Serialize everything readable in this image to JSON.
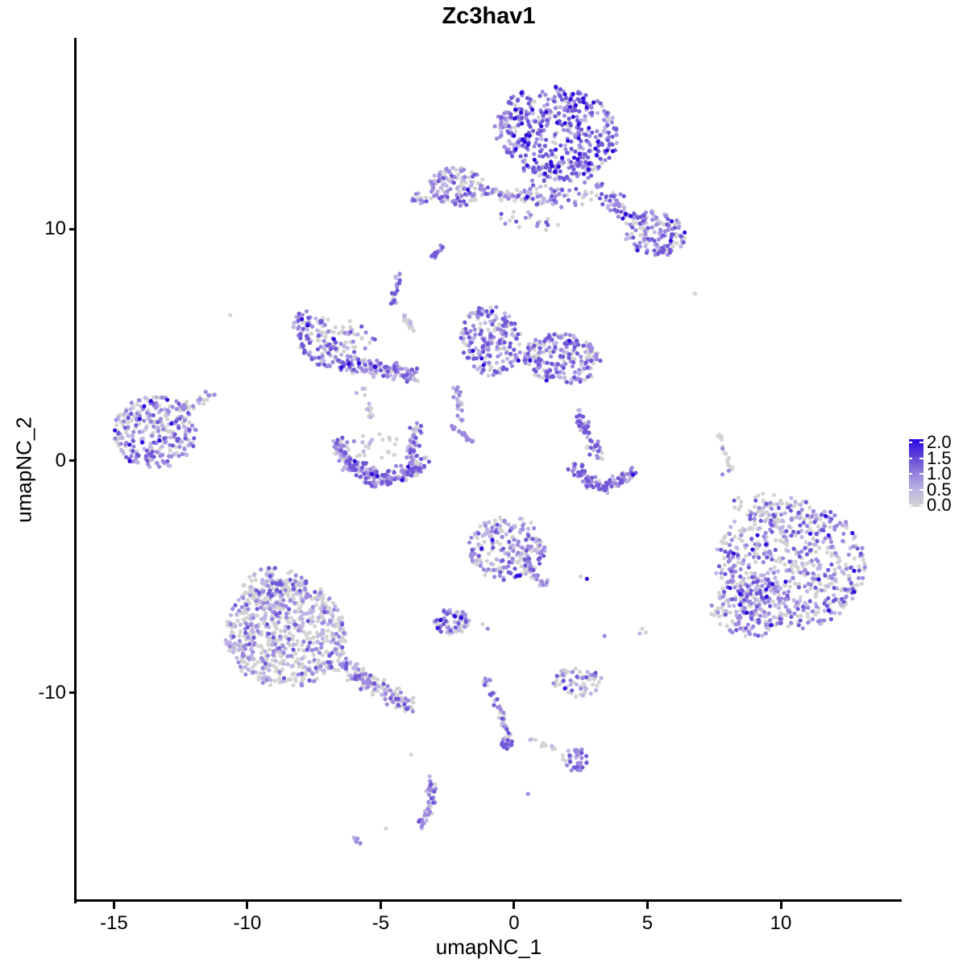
{
  "chart_data": {
    "type": "scatter",
    "title": "Zc3hav1",
    "xlabel": "umapNC_1",
    "ylabel": "umapNC_2",
    "x_ticks": [
      "-15",
      "-10",
      "-5",
      "0",
      "5",
      "10"
    ],
    "x_tick_values": [
      -15,
      -10,
      -5,
      0,
      5,
      10
    ],
    "y_ticks": [
      "10",
      "0",
      "-10"
    ],
    "y_tick_values": [
      10,
      0,
      -10
    ],
    "xlim": [
      -16.4,
      14.5
    ],
    "ylim": [
      -18.96,
      18.23
    ],
    "grid": false,
    "background": "#ffffff",
    "point_radius_px": 2.6,
    "seed": 42,
    "value_colors": {
      "0": "#D3D3D3",
      "0.5": "#BFB4E4",
      "1": "#9C89DF",
      "1.5": "#7158D8",
      "2": "#2F0CDD"
    },
    "legend": {
      "position": "right",
      "gradient_high": "#2B0BE4",
      "gradient_low": "#D3D3D3",
      "entries": [
        {
          "label": "2.0",
          "value": 2.0
        },
        {
          "label": "1.5",
          "value": 1.5
        },
        {
          "label": "1.0",
          "value": 1.0
        },
        {
          "label": "0.5",
          "value": 0.5
        },
        {
          "label": "0.0",
          "value": 0.0
        }
      ]
    },
    "clusters": [
      {
        "name": "top-main",
        "type": "disc",
        "cx": 1.6,
        "cy": 14.17,
        "rx": 2.35,
        "ry": 1.95,
        "rot": -15,
        "n": 480,
        "mix": {
          "0": 0.12,
          "0.5": 0.16,
          "1": 0.3,
          "1.5": 0.32,
          "2": 0.1
        }
      },
      {
        "name": "top-below",
        "type": "disc",
        "cx": 1.7,
        "cy": 11.92,
        "rx": 1.69,
        "ry": 1.02,
        "rot": 0,
        "n": 85,
        "mix": {
          "0": 0.22,
          "0.5": 0.2,
          "1": 0.3,
          "1.5": 0.23,
          "2": 0.05
        }
      },
      {
        "name": "top-arm",
        "type": "line",
        "x1": 3.39,
        "y1": 11.41,
        "x2": 4.99,
        "y2": 10.08,
        "w": 0.5,
        "n": 65,
        "mix": {
          "0": 0.18,
          "0.5": 0.2,
          "1": 0.32,
          "1.5": 0.26,
          "2": 0.04
        }
      },
      {
        "name": "top-arm-blob",
        "type": "disc",
        "cx": 5.27,
        "cy": 9.77,
        "rx": 1.18,
        "ry": 0.97,
        "rot": -20,
        "n": 130,
        "mix": {
          "0": 0.2,
          "0.5": 0.18,
          "1": 0.32,
          "1.5": 0.26,
          "2": 0.04
        }
      },
      {
        "name": "band-dense",
        "type": "disc",
        "cx": -2.12,
        "cy": 11.82,
        "rx": 1.08,
        "ry": 0.82,
        "rot": -10,
        "n": 140,
        "mix": {
          "0": 0.3,
          "0.5": 0.25,
          "1": 0.28,
          "1.5": 0.15,
          "2": 0.02
        }
      },
      {
        "name": "band-chain",
        "type": "line",
        "x1": -1.13,
        "y1": 11.56,
        "x2": 1.51,
        "y2": 11.26,
        "w": 0.3,
        "n": 55,
        "mix": {
          "0": 0.35,
          "0.5": 0.25,
          "1": 0.25,
          "1.5": 0.15
        }
      },
      {
        "name": "band-left-tail",
        "type": "line",
        "x1": -3.95,
        "y1": 11.1,
        "x2": -2.92,
        "y2": 11.51,
        "w": 0.3,
        "n": 18,
        "mix": {
          "0": 0.4,
          "0.5": 0.2,
          "1": 0.3,
          "1.5": 0.1
        }
      },
      {
        "name": "mid-sparse",
        "type": "disc",
        "cx": 0.66,
        "cy": 10.69,
        "rx": 1.41,
        "ry": 0.82,
        "rot": 0,
        "n": 28,
        "mix": {
          "0": 0.4,
          "0.5": 0.2,
          "1": 0.28,
          "1.5": 0.12
        }
      },
      {
        "name": "dash-upper",
        "type": "line",
        "x1": -3.06,
        "y1": 8.74,
        "x2": -2.68,
        "y2": 9.26,
        "w": 0.12,
        "n": 12,
        "mix": {
          "1": 0.5,
          "1.5": 0.5
        }
      },
      {
        "name": "wing-edge",
        "type": "disc",
        "cx": -7.44,
        "cy": 5.26,
        "rx": 0.71,
        "ry": 1.28,
        "rot": 25,
        "n": 110,
        "mix": {
          "0": 0.22,
          "0.5": 0.22,
          "1": 0.3,
          "1.5": 0.22,
          "2": 0.04
        }
      },
      {
        "name": "wing-bottom",
        "type": "line",
        "x1": -6.78,
        "y1": 4.29,
        "x2": -3.67,
        "y2": 3.73,
        "w": 0.42,
        "n": 150,
        "mix": {
          "0": 0.3,
          "0.5": 0.24,
          "1": 0.28,
          "1.5": 0.16,
          "2": 0.02
        }
      },
      {
        "name": "wing-inner",
        "type": "disc",
        "cx": -6.4,
        "cy": 5.47,
        "rx": 1.22,
        "ry": 0.77,
        "rot": -15,
        "n": 50,
        "mix": {
          "0": 0.55,
          "0.5": 0.2,
          "1": 0.17,
          "1.5": 0.08
        }
      },
      {
        "name": "wing-up-chain",
        "type": "line",
        "x1": -4.56,
        "y1": 6.7,
        "x2": -4.38,
        "y2": 8.03,
        "w": 0.15,
        "n": 24,
        "mix": {
          "0": 0.25,
          "0.5": 0.2,
          "1": 0.35,
          "1.5": 0.2
        }
      },
      {
        "name": "wing-diag-chain",
        "type": "line",
        "x1": -4.24,
        "y1": 6.39,
        "x2": -3.76,
        "y2": 5.67,
        "w": 0.15,
        "n": 16,
        "mix": {
          "0": 0.5,
          "0.5": 0.2,
          "1": 0.3
        }
      },
      {
        "name": "center-left-lobe",
        "type": "disc",
        "cx": -0.85,
        "cy": 5.16,
        "rx": 1.13,
        "ry": 1.54,
        "rot": 10,
        "n": 210,
        "mix": {
          "0": 0.28,
          "0.5": 0.22,
          "1": 0.28,
          "1.5": 0.2,
          "2": 0.02
        }
      },
      {
        "name": "center-right-lobe",
        "type": "disc",
        "cx": 1.79,
        "cy": 4.39,
        "rx": 1.46,
        "ry": 1.08,
        "rot": -10,
        "n": 230,
        "mix": {
          "0": 0.24,
          "0.5": 0.2,
          "1": 0.3,
          "1.5": 0.23,
          "2": 0.03
        }
      },
      {
        "name": "center-tail",
        "type": "line",
        "x1": -2.2,
        "y1": 3.21,
        "x2": -1.9,
        "y2": 1.68,
        "w": 0.18,
        "n": 26,
        "mix": {
          "0": 0.4,
          "0.5": 0.3,
          "1": 0.3
        }
      },
      {
        "name": "center-streak",
        "type": "line",
        "x1": -2.35,
        "y1": 1.52,
        "x2": -1.58,
        "y2": 0.81,
        "w": 0.1,
        "n": 22,
        "mix": {
          "0.5": 0.3,
          "1": 0.7
        }
      },
      {
        "name": "left-main",
        "type": "disc",
        "cx": -13.46,
        "cy": 1.22,
        "rx": 1.55,
        "ry": 1.59,
        "rot": 0,
        "n": 300,
        "mix": {
          "0": 0.36,
          "0.5": 0.22,
          "1": 0.26,
          "1.5": 0.14,
          "2": 0.02
        }
      },
      {
        "name": "left-arm",
        "type": "line",
        "x1": -12.43,
        "y1": 2.19,
        "x2": -11.3,
        "y2": 2.91,
        "w": 0.25,
        "n": 25,
        "mix": {
          "0": 0.4,
          "0.5": 0.2,
          "1": 0.3,
          "1.5": 0.1
        }
      },
      {
        "name": "crescent-left",
        "type": "line",
        "x1": -6.54,
        "y1": 0.86,
        "x2": -6.35,
        "y2": 0.04,
        "w": 0.3,
        "n": 45,
        "mix": {
          "0": 0.3,
          "0.5": 0.25,
          "1": 0.3,
          "1.5": 0.15
        }
      },
      {
        "name": "crescent-bottom1",
        "type": "line",
        "x1": -6.35,
        "y1": 0.04,
        "x2": -5.13,
        "y2": -0.88,
        "w": 0.45,
        "n": 95,
        "mix": {
          "0": 0.3,
          "0.5": 0.22,
          "1": 0.28,
          "1.5": 0.18,
          "2": 0.02
        }
      },
      {
        "name": "crescent-bottom2",
        "type": "line",
        "x1": -5.13,
        "y1": -0.88,
        "x2": -3.34,
        "y2": -0.12,
        "w": 0.45,
        "n": 105,
        "mix": {
          "0": 0.28,
          "0.5": 0.22,
          "1": 0.28,
          "1.5": 0.2,
          "2": 0.02
        }
      },
      {
        "name": "crescent-right",
        "type": "line",
        "x1": -3.62,
        "y1": 1.57,
        "x2": -3.91,
        "y2": -0.06,
        "w": 0.28,
        "n": 55,
        "mix": {
          "0": 0.3,
          "0.5": 0.25,
          "1": 0.3,
          "1.5": 0.15
        }
      },
      {
        "name": "crescent-inner",
        "type": "disc",
        "cx": -5.18,
        "cy": 0.65,
        "rx": 0.94,
        "ry": 0.61,
        "rot": 0,
        "n": 22,
        "mix": {
          "0": 0.7,
          "0.5": 0.2,
          "1": 0.1
        }
      },
      {
        "name": "wing-crescent-conn",
        "type": "line",
        "x1": -5.74,
        "y1": 3.21,
        "x2": -5.36,
        "y2": 1.88,
        "w": 0.25,
        "n": 14,
        "mix": {
          "0": 0.75,
          "0.5": 0.25
        }
      },
      {
        "name": "swoosh-arm",
        "type": "line",
        "x1": 2.31,
        "y1": 2.19,
        "x2": 3.2,
        "y2": 0.14,
        "w": 0.3,
        "n": 55,
        "mix": {
          "0": 0.2,
          "0.5": 0.2,
          "1": 0.33,
          "1.5": 0.27
        }
      },
      {
        "name": "swoosh-bottom1",
        "type": "line",
        "x1": 2.17,
        "y1": -0.12,
        "x2": 3.2,
        "y2": -1.24,
        "w": 0.35,
        "n": 55,
        "mix": {
          "0": 0.18,
          "0.5": 0.18,
          "1": 0.3,
          "1.5": 0.3,
          "2": 0.04
        }
      },
      {
        "name": "swoosh-bottom2",
        "type": "line",
        "x1": 3.2,
        "y1": -1.24,
        "x2": 4.61,
        "y2": -0.47,
        "w": 0.32,
        "n": 60,
        "mix": {
          "0": 0.18,
          "0.5": 0.18,
          "1": 0.3,
          "1.5": 0.3,
          "2": 0.04
        }
      },
      {
        "name": "right-streak",
        "type": "line",
        "x1": 7.67,
        "y1": 1.11,
        "x2": 8.19,
        "y2": -0.53,
        "w": 0.12,
        "n": 18,
        "mix": {
          "0": 0.85,
          "1": 0.15
        }
      },
      {
        "name": "right-main",
        "type": "disc",
        "cx": 10.36,
        "cy": -4.47,
        "rx": 2.82,
        "ry": 2.77,
        "rot": -20,
        "n": 620,
        "mix": {
          "0": 0.42,
          "0.5": 0.2,
          "1": 0.22,
          "1.5": 0.14,
          "2": 0.02
        }
      },
      {
        "name": "right-sub",
        "type": "disc",
        "cx": 8.85,
        "cy": -6.31,
        "rx": 1.51,
        "ry": 1.33,
        "rot": 0,
        "n": 160,
        "mix": {
          "0": 0.38,
          "0.5": 0.2,
          "1": 0.25,
          "1.5": 0.15,
          "2": 0.02
        }
      },
      {
        "name": "right-top-sparse",
        "type": "disc",
        "cx": 9.79,
        "cy": -2.22,
        "rx": 1.69,
        "ry": 0.82,
        "rot": -10,
        "n": 55,
        "mix": {
          "0": 0.55,
          "0.5": 0.2,
          "1": 0.17,
          "1.5": 0.08
        }
      },
      {
        "name": "mid-low-main",
        "type": "disc",
        "cx": -0.28,
        "cy": -3.75,
        "rx": 1.46,
        "ry": 1.38,
        "rot": 20,
        "n": 230,
        "mix": {
          "0": 0.38,
          "0.5": 0.2,
          "1": 0.26,
          "1.5": 0.14,
          "2": 0.02
        }
      },
      {
        "name": "mid-low-arm",
        "type": "line",
        "x1": 0.47,
        "y1": -4.47,
        "x2": 1.23,
        "y2": -5.49,
        "w": 0.25,
        "n": 30,
        "mix": {
          "0": 0.5,
          "0.5": 0.2,
          "1": 0.3
        }
      },
      {
        "name": "small-dense",
        "type": "disc",
        "cx": -2.35,
        "cy": -6.93,
        "rx": 0.66,
        "ry": 0.56,
        "rot": 0,
        "n": 70,
        "mix": {
          "0": 0.25,
          "0.5": 0.2,
          "1": 0.3,
          "1.5": 0.2,
          "2": 0.05
        }
      },
      {
        "name": "bottomleft-main",
        "type": "disc",
        "cx": -8.57,
        "cy": -7.44,
        "rx": 2.26,
        "ry": 2.36,
        "rot": 0,
        "n": 700,
        "mix": {
          "0": 0.55,
          "0.5": 0.22,
          "1": 0.16,
          "1.5": 0.07
        }
      },
      {
        "name": "bottomleft-top",
        "type": "disc",
        "cx": -8.94,
        "cy": -5.49,
        "rx": 1.22,
        "ry": 0.92,
        "rot": 0,
        "n": 110,
        "mix": {
          "0": 0.6,
          "0.5": 0.2,
          "1": 0.14,
          "1.5": 0.06
        }
      },
      {
        "name": "bottomleft-tail",
        "type": "line",
        "x1": -6.68,
        "y1": -8.57,
        "x2": -3.86,
        "y2": -10.61,
        "w": 0.5,
        "n": 160,
        "mix": {
          "0": 0.5,
          "0.5": 0.2,
          "1": 0.2,
          "1.5": 0.1
        }
      },
      {
        "name": "small-oval",
        "type": "disc",
        "cx": 2.4,
        "cy": -9.54,
        "rx": 0.94,
        "ry": 0.64,
        "rot": -5,
        "n": 65,
        "mix": {
          "0": 0.45,
          "0.5": 0.15,
          "1": 0.25,
          "1.5": 0.13,
          "2": 0.02
        }
      },
      {
        "name": "diag-chain",
        "type": "line",
        "x1": -0.99,
        "y1": -9.39,
        "x2": -0.14,
        "y2": -12.15,
        "w": 0.2,
        "n": 45,
        "mix": {
          "0": 0.35,
          "0.5": 0.15,
          "1": 0.3,
          "1.5": 0.2
        }
      },
      {
        "name": "diag-chain-end",
        "type": "disc",
        "cx": -0.33,
        "cy": -12.15,
        "rx": 0.28,
        "ry": 0.29,
        "rot": 0,
        "n": 14,
        "mix": {
          "1": 0.4,
          "1.5": 0.6
        }
      },
      {
        "name": "chain-trail",
        "type": "line",
        "x1": 0.38,
        "y1": -11.94,
        "x2": 1.6,
        "y2": -12.36,
        "w": 0.15,
        "n": 10,
        "mix": {
          "0": 0.8,
          "0.5": 0.2
        }
      },
      {
        "name": "small-lower",
        "type": "disc",
        "cx": 2.31,
        "cy": -12.87,
        "rx": 0.52,
        "ry": 0.51,
        "rot": 0,
        "n": 40,
        "mix": {
          "0": 0.35,
          "0.5": 0.15,
          "1": 0.3,
          "1.5": 0.2
        }
      },
      {
        "name": "bottom-streak1",
        "type": "line",
        "x1": -3.2,
        "y1": -13.69,
        "x2": -3.03,
        "y2": -14.71,
        "w": 0.2,
        "n": 25,
        "mix": {
          "0": 0.2,
          "0.5": 0.2,
          "1": 0.4,
          "1.5": 0.2
        }
      },
      {
        "name": "bottom-streak2",
        "type": "line",
        "x1": -3.03,
        "y1": -14.71,
        "x2": -3.58,
        "y2": -15.74,
        "w": 0.2,
        "n": 25,
        "mix": {
          "0": 0.2,
          "0.5": 0.2,
          "1": 0.4,
          "1.5": 0.2
        }
      },
      {
        "name": "bottom-dash",
        "type": "line",
        "x1": -6.12,
        "y1": -16.15,
        "x2": -5.74,
        "y2": -16.56,
        "w": 0.1,
        "n": 8,
        "mix": {
          "0.5": 0.6,
          "1": 0.4
        }
      }
    ],
    "singles": [
      {
        "x": -10.64,
        "y": 6.29,
        "v": "0"
      },
      {
        "x": 6.78,
        "y": 7.21,
        "v": "0"
      },
      {
        "x": 1.41,
        "y": 12.43,
        "v": "0"
      },
      {
        "x": 2.73,
        "y": -5.08,
        "v": "2"
      },
      {
        "x": 2.5,
        "y": -4.98,
        "v": "0"
      },
      {
        "x": -1.18,
        "y": -7.03,
        "v": "0"
      },
      {
        "x": -0.99,
        "y": -7.23,
        "v": "1"
      },
      {
        "x": 3.39,
        "y": -7.54,
        "v": "1"
      },
      {
        "x": 4.8,
        "y": -7.23,
        "v": "0"
      },
      {
        "x": 4.71,
        "y": -7.44,
        "v": "0.5"
      },
      {
        "x": 4.94,
        "y": -7.39,
        "v": "0"
      },
      {
        "x": -3.86,
        "y": -12.66,
        "v": "0"
      },
      {
        "x": -4.8,
        "y": -15.84,
        "v": "0"
      },
      {
        "x": 0.52,
        "y": -14.35,
        "v": "1"
      },
      {
        "x": 7.81,
        "y": -0.58,
        "v": "1"
      }
    ]
  }
}
